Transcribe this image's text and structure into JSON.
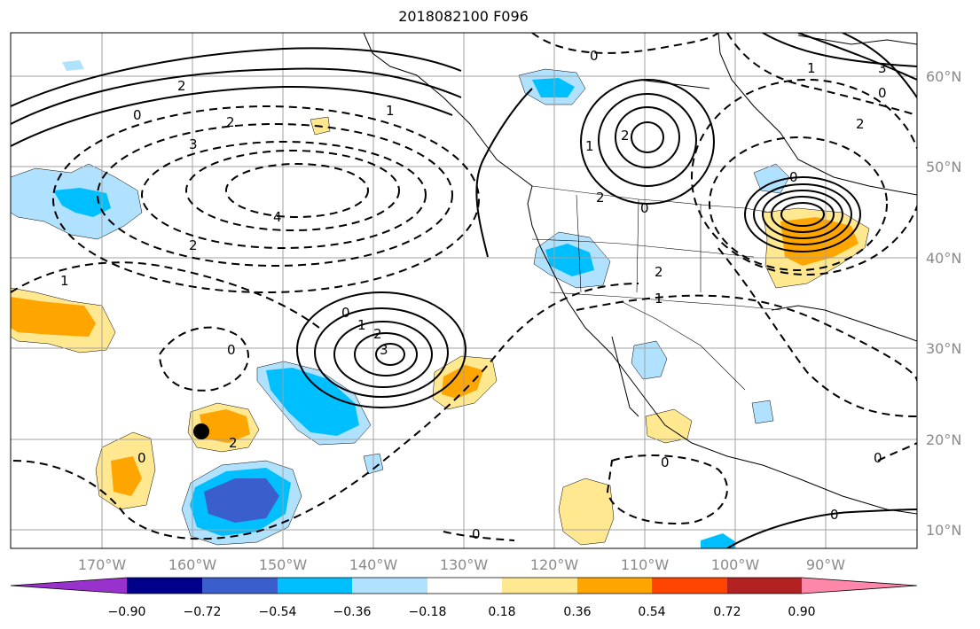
{
  "title": "2018082100 F096",
  "lon_labels": [
    "170°W",
    "160°W",
    "150°W",
    "140°W",
    "130°W",
    "120°W",
    "110°W",
    "100°W",
    "90°W"
  ],
  "lat_labels": [
    "60°N",
    "50°N",
    "40°N",
    "30°N",
    "20°N",
    "10°N"
  ],
  "colorbar": {
    "ticks": [
      "−0.90",
      "−0.72",
      "−0.54",
      "−0.36",
      "−0.18",
      "0.18",
      "0.36",
      "0.54",
      "0.72",
      "0.90"
    ],
    "colors": [
      "#9932cc",
      "#00008b",
      "#3a5fcd",
      "#00bfff",
      "#b0e2ff",
      "#ffffff",
      "#ffe88f",
      "#ffa500",
      "#ff4500",
      "#b22222",
      "#ff88aa"
    ]
  },
  "contour_labels": {
    "c0a": "0",
    "c1a": "1",
    "c2a": "2",
    "c2b": "2",
    "c3a": "3",
    "c4a": "4",
    "c2c": "2",
    "c1b": "1",
    "c0b": "0",
    "c1c": "1",
    "c2d": "2",
    "c3b": "3",
    "c0c": "0",
    "c0d": "0",
    "c2e": "2",
    "c0e": "0",
    "c1d": "1",
    "c2f": "2",
    "c0f": "0",
    "c1e": "1",
    "c3c": "3",
    "c0g": "0",
    "c2g": "2",
    "c2h": "2",
    "c1f": "1",
    "c2i": "2",
    "c0h": "0",
    "c0i": "0",
    "c0j": "0",
    "c0k": "0",
    "c0l": "0"
  }
}
